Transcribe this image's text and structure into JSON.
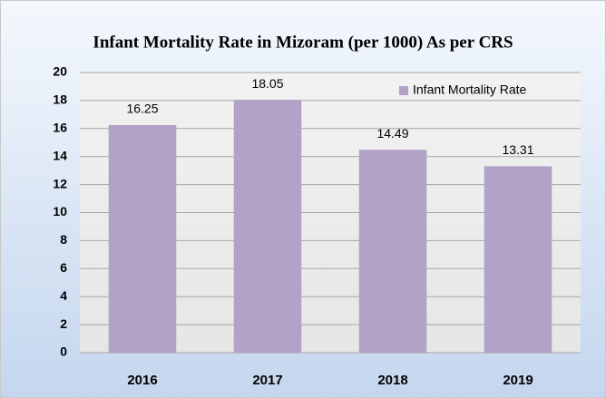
{
  "chart_data": {
    "type": "bar",
    "title": "Infant Mortality Rate in Mizoram (per 1000) As per CRS",
    "categories": [
      "2016",
      "2017",
      "2018",
      "2019"
    ],
    "series": [
      {
        "name": "Infant Mortality Rate",
        "color": "#b3a2c7",
        "values": [
          16.25,
          18.05,
          14.49,
          13.31
        ]
      }
    ],
    "ylim": [
      0,
      20
    ],
    "yticks": [
      0,
      2,
      4,
      6,
      8,
      10,
      12,
      14,
      16,
      18,
      20
    ],
    "grid": true,
    "legend": "upper right"
  }
}
